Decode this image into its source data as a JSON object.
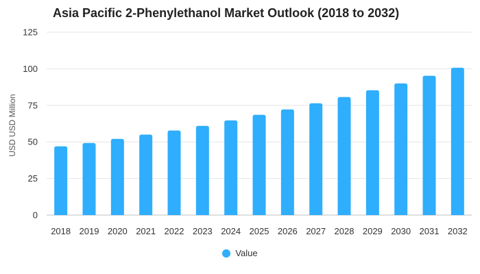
{
  "colors": {
    "bar": "#2eaefc",
    "grid": "#e6e6e6",
    "axis": "#bfbfbf"
  },
  "chart_data": {
    "type": "bar",
    "title": "Asia Pacific 2-Phenylethanol Market Outlook (2018 to 2032)",
    "xlabel": "",
    "ylabel": "USD USD Million",
    "ylim": [
      0,
      125
    ],
    "yticks": [
      0,
      25,
      50,
      75,
      100,
      125
    ],
    "grid": true,
    "legend_position": "bottom-center",
    "categories": [
      "2018",
      "2019",
      "2020",
      "2021",
      "2022",
      "2023",
      "2024",
      "2025",
      "2026",
      "2027",
      "2028",
      "2029",
      "2030",
      "2031",
      "2032"
    ],
    "series": [
      {
        "name": "Value",
        "values": [
          47,
          49.3,
          52.1,
          55,
          57.8,
          61,
          64.7,
          68.5,
          72.2,
          76.4,
          80.7,
          85.3,
          90,
          95.2,
          100.7
        ]
      }
    ]
  }
}
